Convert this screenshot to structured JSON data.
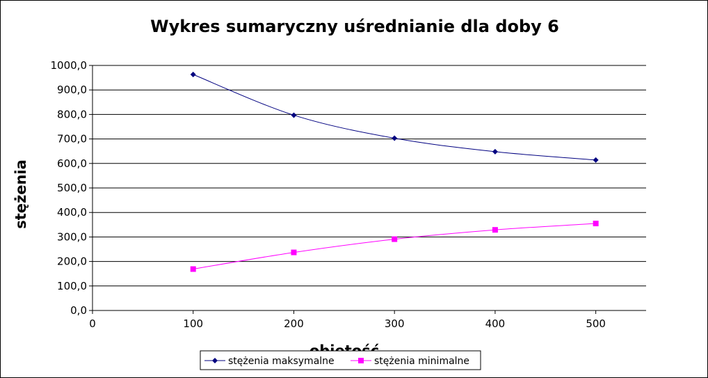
{
  "chart_data": {
    "type": "line",
    "title": "Wykres sumaryczny uśrednianie dla doby 6",
    "xlabel": "objętość",
    "ylabel": "stężenia",
    "x": [
      100,
      200,
      300,
      400,
      500
    ],
    "xlim": [
      0,
      550
    ],
    "ylim": [
      0,
      1000
    ],
    "x_ticks": [
      0,
      100,
      200,
      300,
      400,
      500
    ],
    "x_tick_labels": [
      "0",
      "100",
      "200",
      "300",
      "400",
      "500"
    ],
    "y_ticks": [
      0,
      100,
      200,
      300,
      400,
      500,
      600,
      700,
      800,
      900,
      1000
    ],
    "y_tick_labels": [
      "0,0",
      "100,0",
      "200,0",
      "300,0",
      "400,0",
      "500,0",
      "600,0",
      "700,0",
      "800,0",
      "900,0",
      "1000,0"
    ],
    "grid": "horizontal",
    "legend_position": "bottom",
    "series": [
      {
        "name": "stężenia maksymalne",
        "values": [
          963,
          797,
          703,
          648,
          614
        ],
        "color": "#000080",
        "marker": "diamond"
      },
      {
        "name": "stężenia minimalne",
        "values": [
          169,
          237,
          291,
          329,
          355
        ],
        "color": "#ff00ff",
        "marker": "square"
      }
    ]
  }
}
